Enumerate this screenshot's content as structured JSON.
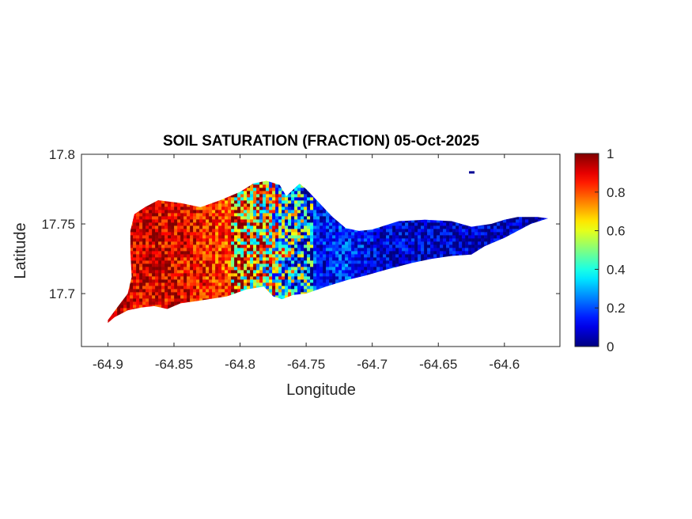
{
  "chart_data": {
    "type": "heatmap",
    "title": "SOIL SATURATION (FRACTION) 05-Oct-2025",
    "xlabel": "Longitude",
    "ylabel": "Latitude",
    "xlim": [
      -64.92,
      -64.558
    ],
    "ylim": [
      17.662,
      17.8
    ],
    "xticks": [
      -64.9,
      -64.85,
      -64.8,
      -64.75,
      -64.7,
      -64.65,
      -64.6
    ],
    "xtick_labels": [
      "-64.9",
      "-64.85",
      "-64.8",
      "-64.75",
      "-64.7",
      "-64.65",
      "-64.6"
    ],
    "yticks": [
      17.7,
      17.75,
      17.8
    ],
    "ytick_labels": [
      "17.7",
      "17.75",
      "17.8"
    ],
    "colorbar": {
      "colormap": "jet",
      "range": [
        0,
        1
      ],
      "ticks": [
        0,
        0.2,
        0.4,
        0.6,
        0.8,
        1
      ],
      "tick_labels": [
        "0",
        "0.2",
        "0.4",
        "0.6",
        "0.8",
        "1"
      ],
      "stops": [
        "#00008f",
        "#0000ff",
        "#00ffff",
        "#ffff00",
        "#ff0000",
        "#800000"
      ]
    },
    "grid": false,
    "region_profile": {
      "longitude": [
        -64.9,
        -64.85,
        -64.8,
        -64.78,
        -64.76,
        -64.74,
        -64.72,
        -64.7,
        -64.65,
        -64.6,
        -64.57
      ],
      "saturation": [
        0.92,
        0.9,
        0.78,
        0.6,
        0.35,
        0.12,
        0.18,
        0.1,
        0.06,
        0.05,
        0.05
      ]
    },
    "outline": {
      "island_top": [
        [
          -64.9,
          17.681
        ],
        [
          -64.893,
          17.69
        ],
        [
          -64.885,
          17.7
        ],
        [
          -64.882,
          17.712
        ],
        [
          -64.883,
          17.73
        ],
        [
          -64.883,
          17.745
        ],
        [
          -64.88,
          17.757
        ],
        [
          -64.872,
          17.762
        ],
        [
          -64.862,
          17.767
        ],
        [
          -64.845,
          17.765
        ],
        [
          -64.83,
          17.762
        ],
        [
          -64.815,
          17.767
        ],
        [
          -64.8,
          17.773
        ],
        [
          -64.79,
          17.779
        ],
        [
          -64.78,
          17.781
        ],
        [
          -64.77,
          17.778
        ],
        [
          -64.765,
          17.77
        ],
        [
          -64.755,
          17.779
        ],
        [
          -64.75,
          17.775
        ],
        [
          -64.74,
          17.765
        ],
        [
          -64.73,
          17.755
        ],
        [
          -64.72,
          17.747
        ],
        [
          -64.71,
          17.745
        ],
        [
          -64.7,
          17.746
        ],
        [
          -64.68,
          17.752
        ],
        [
          -64.66,
          17.753
        ],
        [
          -64.64,
          17.752
        ],
        [
          -64.625,
          17.748
        ],
        [
          -64.61,
          17.75
        ],
        [
          -64.6,
          17.753
        ],
        [
          -64.59,
          17.755
        ],
        [
          -64.575,
          17.755
        ],
        [
          -64.567,
          17.754
        ]
      ],
      "island_bottom": [
        [
          -64.567,
          17.754
        ],
        [
          -64.58,
          17.75
        ],
        [
          -64.6,
          17.74
        ],
        [
          -64.615,
          17.734
        ],
        [
          -64.625,
          17.728
        ],
        [
          -64.64,
          17.727
        ],
        [
          -64.655,
          17.725
        ],
        [
          -64.67,
          17.722
        ],
        [
          -64.69,
          17.717
        ],
        [
          -64.705,
          17.713
        ],
        [
          -64.718,
          17.71
        ],
        [
          -64.735,
          17.705
        ],
        [
          -64.75,
          17.7
        ],
        [
          -64.76,
          17.699
        ],
        [
          -64.768,
          17.696
        ],
        [
          -64.775,
          17.698
        ],
        [
          -64.782,
          17.705
        ],
        [
          -64.795,
          17.703
        ],
        [
          -64.81,
          17.698
        ],
        [
          -64.83,
          17.695
        ],
        [
          -64.845,
          17.693
        ],
        [
          -64.855,
          17.689
        ],
        [
          -64.865,
          17.691
        ],
        [
          -64.875,
          17.69
        ],
        [
          -64.885,
          17.688
        ],
        [
          -64.895,
          17.683
        ],
        [
          -64.9,
          17.679
        ]
      ],
      "islet": [
        -64.625,
        17.787
      ]
    }
  }
}
